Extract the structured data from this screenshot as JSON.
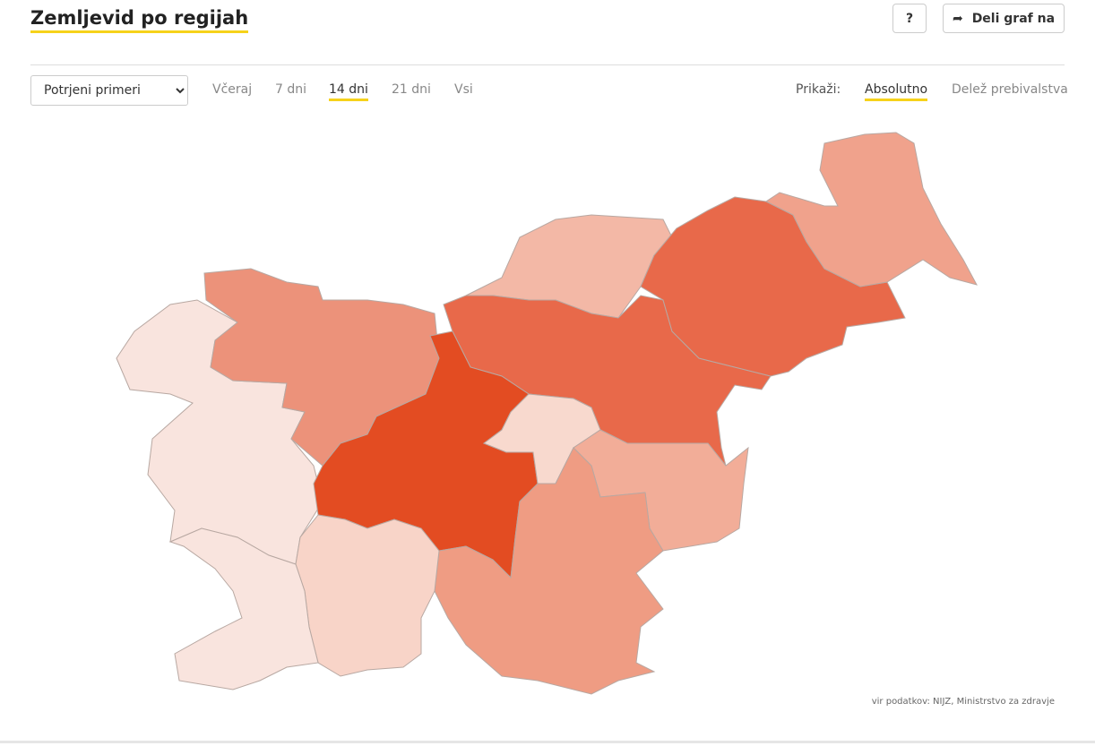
{
  "header": {
    "title": "Zemljevid po regijah",
    "help_button": "?",
    "share_button": "Deli graf na"
  },
  "controls": {
    "select": "Potrjeni primeri",
    "periods": [
      "Včeraj",
      "7 dni",
      "14 dni",
      "21 dni",
      "Vsi"
    ],
    "active_period": 2,
    "show_label": "Prikaži:",
    "modes": [
      "Absolutno",
      "Delež prebivalstva"
    ],
    "active_mode": 0
  },
  "source": "vir podatkov: NIJZ, Ministrstvo za zdravje"
}
